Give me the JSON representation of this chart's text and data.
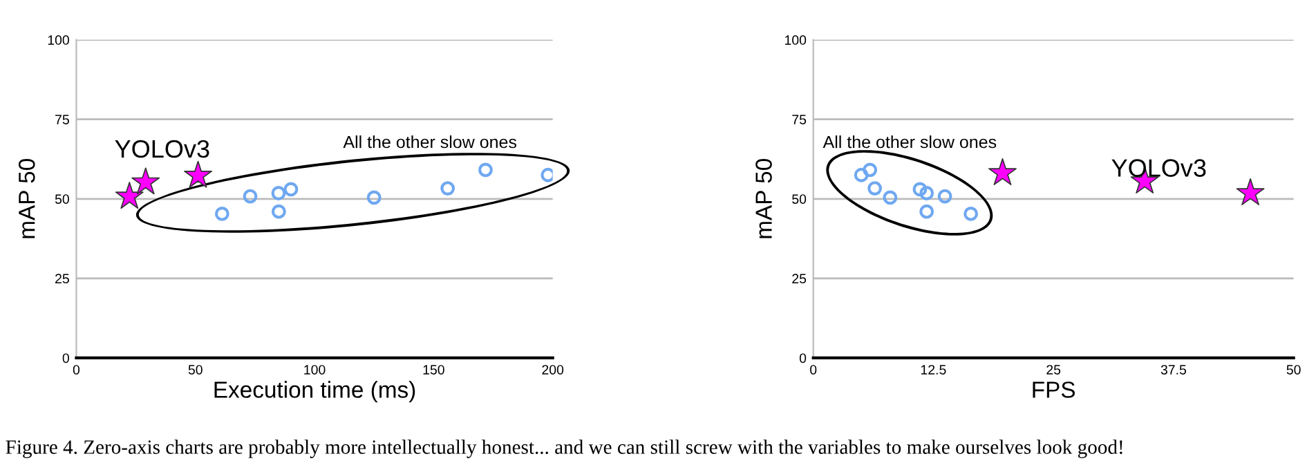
{
  "chart_data": [
    {
      "type": "scatter",
      "xlabel": "Execution time (ms)",
      "ylabel": "mAP 50",
      "xlim": [
        0,
        200
      ],
      "xticks": [
        0,
        50,
        100,
        150,
        200
      ],
      "ylim": [
        0,
        100
      ],
      "yticks": [
        0,
        25,
        50,
        75,
        100
      ],
      "grid": "y",
      "legend": false,
      "series": [
        {
          "color": "#ff00ff",
          "marker": "star",
          "x": [
            22.3,
            29.1,
            51.1
          ],
          "values": [
            50.7,
            55.2,
            57.3
          ]
        },
        {
          "color": "#6fa8f0",
          "marker": "circle",
          "x": [
            61.2,
            73,
            84.9,
            85,
            90.1,
            125,
            155.9,
            171.8,
            198
          ],
          "values": [
            45.3,
            50.8,
            51.8,
            46.0,
            53.0,
            50.4,
            53.3,
            59.1,
            57.5
          ]
        }
      ],
      "annotations": [
        "YOLOv3",
        "All the other slow ones"
      ]
    },
    {
      "type": "scatter",
      "xlabel": "FPS",
      "ylabel": "mAP 50",
      "xlim": [
        0,
        50
      ],
      "xticks": [
        0,
        12.5,
        25,
        37.5,
        50
      ],
      "ylim": [
        0,
        100
      ],
      "yticks": [
        0,
        25,
        50,
        75,
        100
      ],
      "grid": "y",
      "legend": false,
      "series": [
        {
          "color": "#ff00ff",
          "marker": "star",
          "x": [
            19.7,
            34.5,
            45.5
          ],
          "values": [
            58.1,
            55.5,
            51.8
          ]
        },
        {
          "color": "#6fa8f0",
          "marker": "circle",
          "x": [
            5.0,
            5.9,
            6.4,
            8.0,
            11.1,
            11.8,
            11.8,
            13.7,
            16.4
          ],
          "values": [
            57.5,
            59.1,
            53.3,
            50.4,
            53.0,
            51.8,
            46.0,
            50.8,
            45.3
          ]
        }
      ],
      "annotations": [
        "All the other slow ones",
        "YOLOv3",
        "Figure 4. Zero-axis charts are probably more intellectually honest... and we can still screw with the variables to make ourselves look good!"
      ]
    }
  ]
}
